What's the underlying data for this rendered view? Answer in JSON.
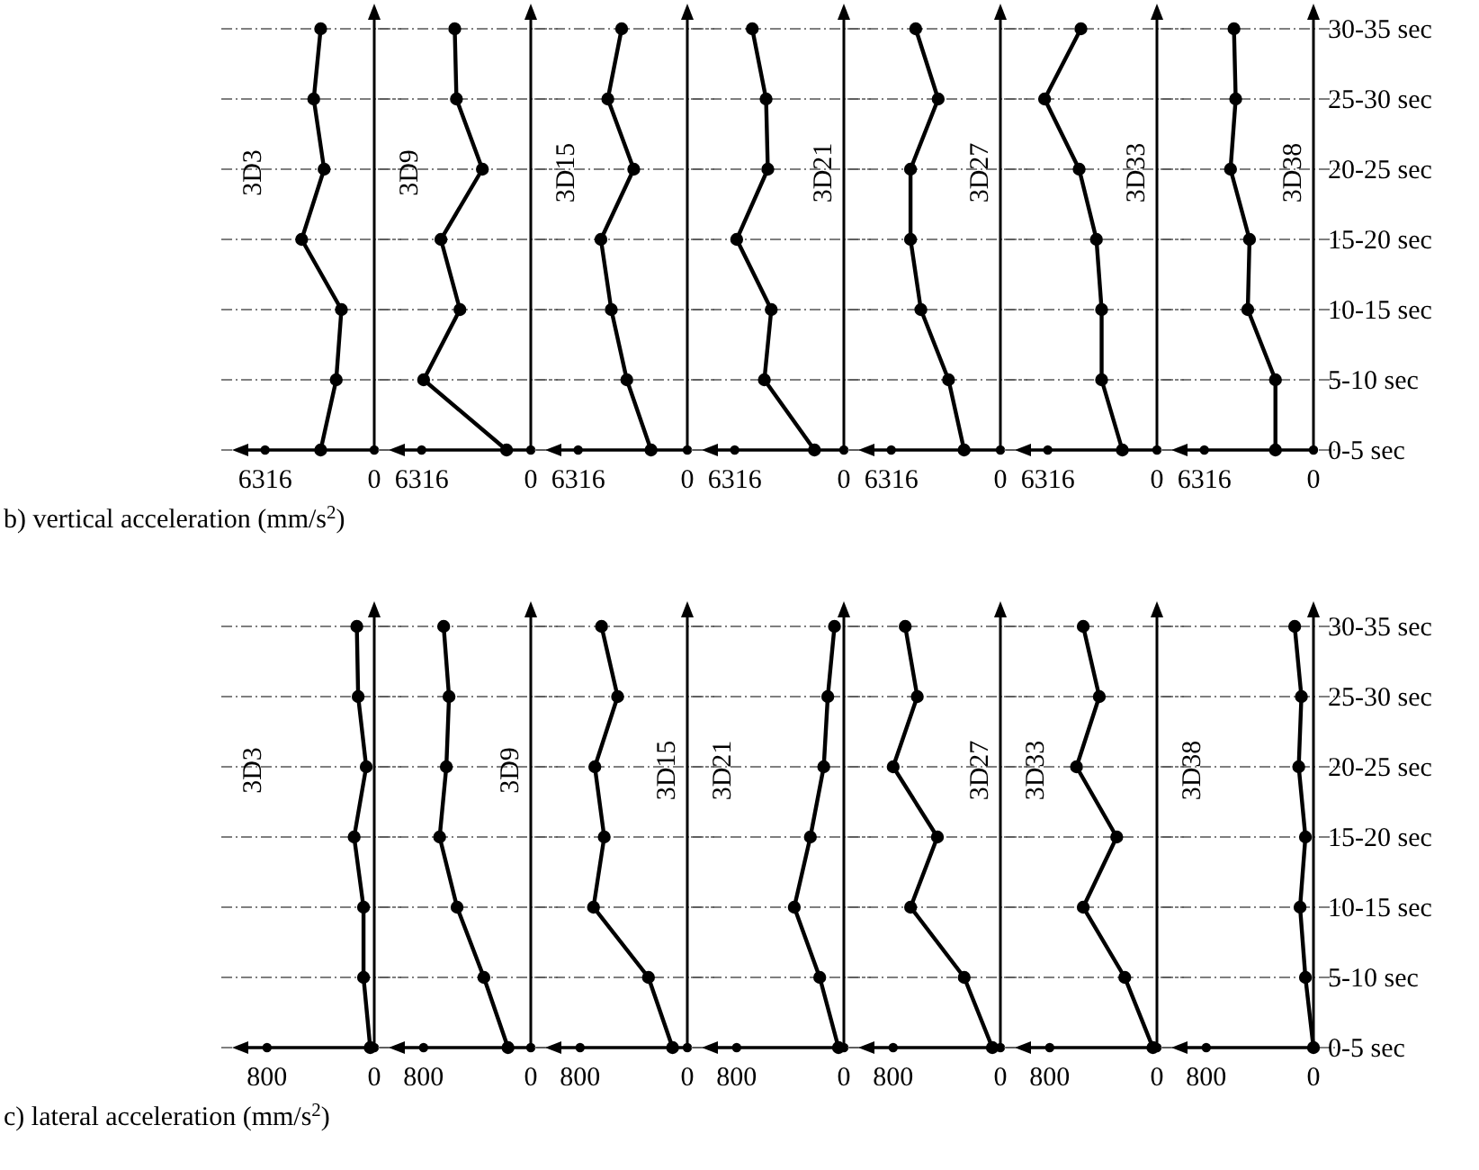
{
  "chart_data": [
    {
      "type": "line",
      "orientation": "horizontal",
      "categories": [
        null,
        null,
        null,
        null,
        null,
        null,
        null
      ],
      "xlim": [
        7600,
        0
      ],
      "xticks": [
        6316,
        0
      ],
      "tick_labels": "x",
      "grid": "y",
      "marker": "circle",
      "line_style": "solid",
      "annotations": [
        "b) vertical acceleration (mm/s$^{2}$)"
      ],
      "series": [
        {
          "name": "3D3",
          "color": "#000000",
          "values": [
            3100,
            3500,
            2900,
            4200,
            1900,
            2200,
            3100
          ]
        }
      ]
    },
    {
      "type": "line",
      "orientation": "horizontal",
      "categories": [
        null,
        null,
        null,
        null,
        null,
        null,
        null
      ],
      "xlim": [
        7600,
        0
      ],
      "xticks": [
        6316,
        0
      ],
      "tick_labels": "x",
      "grid": "y",
      "marker": "circle",
      "line_style": "solid",
      "series": [
        {
          "name": "3D9",
          "color": "#000000",
          "values": [
            4400,
            4300,
            2800,
            5200,
            4100,
            6200,
            1400
          ]
        }
      ]
    },
    {
      "type": "line",
      "orientation": "horizontal",
      "categories": [
        null,
        null,
        null,
        null,
        null,
        null,
        null
      ],
      "xlim": [
        7600,
        0
      ],
      "xticks": [
        6316,
        0
      ],
      "tick_labels": "x",
      "grid": "y",
      "marker": "circle",
      "line_style": "solid",
      "series": [
        {
          "name": "3D15",
          "color": "#000000",
          "values": [
            3800,
            4600,
            3100,
            5000,
            4400,
            3500,
            2100
          ]
        }
      ]
    },
    {
      "type": "line",
      "orientation": "horizontal",
      "categories": [
        null,
        null,
        null,
        null,
        null,
        null,
        null
      ],
      "xlim": [
        7600,
        0
      ],
      "xticks": [
        6316,
        0
      ],
      "tick_labels": "x",
      "grid": "y",
      "marker": "circle",
      "line_style": "solid",
      "series": [
        {
          "name": "3D21",
          "color": "#000000",
          "values": [
            5300,
            4500,
            4400,
            6200,
            4200,
            4600,
            1700
          ]
        }
      ]
    },
    {
      "type": "line",
      "orientation": "horizontal",
      "categories": [
        null,
        null,
        null,
        null,
        null,
        null,
        null
      ],
      "xlim": [
        7600,
        0
      ],
      "xticks": [
        6316,
        0
      ],
      "tick_labels": "x",
      "grid": "y",
      "marker": "circle",
      "line_style": "solid",
      "series": [
        {
          "name": "3D27",
          "color": "#000000",
          "values": [
            4900,
            3600,
            5200,
            5200,
            4600,
            3000,
            2100
          ]
        }
      ]
    },
    {
      "type": "line",
      "orientation": "horizontal",
      "categories": [
        null,
        null,
        null,
        null,
        null,
        null,
        null
      ],
      "xlim": [
        7600,
        0
      ],
      "xticks": [
        6316,
        0
      ],
      "tick_labels": "x",
      "grid": "y",
      "marker": "circle",
      "line_style": "solid",
      "series": [
        {
          "name": "3D33",
          "color": "#000000",
          "values": [
            4400,
            6500,
            4500,
            3500,
            3200,
            3200,
            2000
          ]
        }
      ]
    },
    {
      "type": "line",
      "orientation": "horizontal",
      "categories": [
        "30-35 sec",
        "25-30 sec",
        "20-25 sec",
        "15-20 sec",
        "10-15 sec",
        "5-10 sec",
        "0-5 sec"
      ],
      "xlim": [
        7600,
        0
      ],
      "xticks": [
        6316,
        0
      ],
      "grid": "y",
      "marker": "circle",
      "line_style": "solid",
      "series": [
        {
          "name": "3D38",
          "color": "#000000",
          "values": [
            4600,
            4500,
            4800,
            3700,
            3800,
            2200,
            2200
          ]
        }
      ]
    },
    {
      "type": "line",
      "orientation": "horizontal",
      "categories": [
        null,
        null,
        null,
        null,
        null,
        null,
        null
      ],
      "xlim": [
        980,
        0
      ],
      "xticks": [
        800,
        0
      ],
      "tick_labels": "x",
      "grid": "y",
      "marker": "circle",
      "line_style": "solid",
      "annotations": [
        "c) lateral acceleration (mm/s$^{2}$)"
      ],
      "series": [
        {
          "name": "3D3",
          "color": "#000000",
          "values": [
            130,
            120,
            60,
            150,
            80,
            80,
            30
          ]
        }
      ]
    },
    {
      "type": "line",
      "orientation": "horizontal",
      "categories": [
        null,
        null,
        null,
        null,
        null,
        null,
        null
      ],
      "xlim": [
        980,
        0
      ],
      "xticks": [
        800,
        0
      ],
      "tick_labels": "x",
      "grid": "y",
      "marker": "circle",
      "line_style": "solid",
      "series": [
        {
          "name": "3D9",
          "color": "#000000",
          "values": [
            650,
            610,
            630,
            680,
            550,
            350,
            170
          ]
        }
      ]
    },
    {
      "type": "line",
      "orientation": "horizontal",
      "categories": [
        null,
        null,
        null,
        null,
        null,
        null,
        null
      ],
      "xlim": [
        980,
        0
      ],
      "xticks": [
        800,
        0
      ],
      "tick_labels": "x",
      "grid": "y",
      "marker": "circle",
      "line_style": "solid",
      "series": [
        {
          "name": "3D15",
          "color": "#000000",
          "values": [
            640,
            520,
            690,
            620,
            700,
            290,
            110
          ]
        }
      ]
    },
    {
      "type": "line",
      "orientation": "horizontal",
      "categories": [
        null,
        null,
        null,
        null,
        null,
        null,
        null
      ],
      "xlim": [
        980,
        0
      ],
      "xticks": [
        800,
        0
      ],
      "tick_labels": "x",
      "grid": "y",
      "marker": "circle",
      "line_style": "solid",
      "series": [
        {
          "name": "3D21",
          "color": "#000000",
          "values": [
            70,
            120,
            150,
            250,
            370,
            180,
            40
          ]
        }
      ]
    },
    {
      "type": "line",
      "orientation": "horizontal",
      "categories": [
        null,
        null,
        null,
        null,
        null,
        null,
        null
      ],
      "xlim": [
        980,
        0
      ],
      "xticks": [
        800,
        0
      ],
      "tick_labels": "x",
      "grid": "y",
      "marker": "circle",
      "line_style": "solid",
      "series": [
        {
          "name": "3D27",
          "color": "#000000",
          "values": [
            710,
            620,
            800,
            470,
            670,
            270,
            60
          ]
        }
      ]
    },
    {
      "type": "line",
      "orientation": "horizontal",
      "categories": [
        null,
        null,
        null,
        null,
        null,
        null,
        null
      ],
      "xlim": [
        980,
        0
      ],
      "xticks": [
        800,
        0
      ],
      "tick_labels": "x",
      "grid": "y",
      "marker": "circle",
      "line_style": "solid",
      "series": [
        {
          "name": "3D33",
          "color": "#000000",
          "values": [
            550,
            430,
            600,
            300,
            550,
            240,
            30
          ]
        }
      ]
    },
    {
      "type": "line",
      "orientation": "horizontal",
      "categories": [
        "30-35 sec",
        "25-30 sec",
        "20-25 sec",
        "15-20 sec",
        "10-15 sec",
        "5-10 sec",
        "0-5 sec"
      ],
      "xlim": [
        980,
        0
      ],
      "xticks": [
        800,
        0
      ],
      "grid": "y",
      "marker": "circle",
      "line_style": "solid",
      "series": [
        {
          "name": "3D38",
          "color": "#000000",
          "values": [
            140,
            90,
            110,
            60,
            100,
            60,
            0
          ]
        }
      ]
    }
  ]
}
